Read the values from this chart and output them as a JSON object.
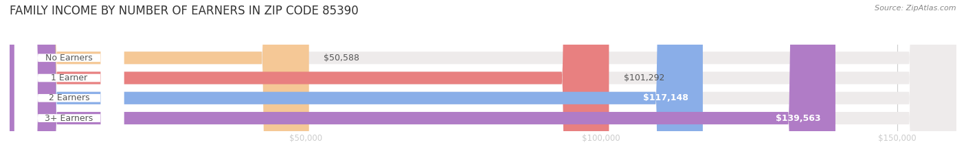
{
  "title": "FAMILY INCOME BY NUMBER OF EARNERS IN ZIP CODE 85390",
  "source": "Source: ZipAtlas.com",
  "categories": [
    "No Earners",
    "1 Earner",
    "2 Earners",
    "3+ Earners"
  ],
  "values": [
    50588,
    101292,
    117148,
    139563
  ],
  "bar_colors": [
    "#f5c896",
    "#e88080",
    "#8aaee8",
    "#b07cc6"
  ],
  "xlim": [
    0,
    160000
  ],
  "tick_values": [
    50000,
    100000,
    150000
  ],
  "tick_labels": [
    "$50,000",
    "$100,000",
    "$150,000"
  ],
  "figsize": [
    14.06,
    2.33
  ],
  "dpi": 100,
  "bar_height": 0.62,
  "background_color": "#ffffff",
  "title_fontsize": 12,
  "label_fontsize": 9,
  "tick_fontsize": 8.5,
  "source_fontsize": 8
}
